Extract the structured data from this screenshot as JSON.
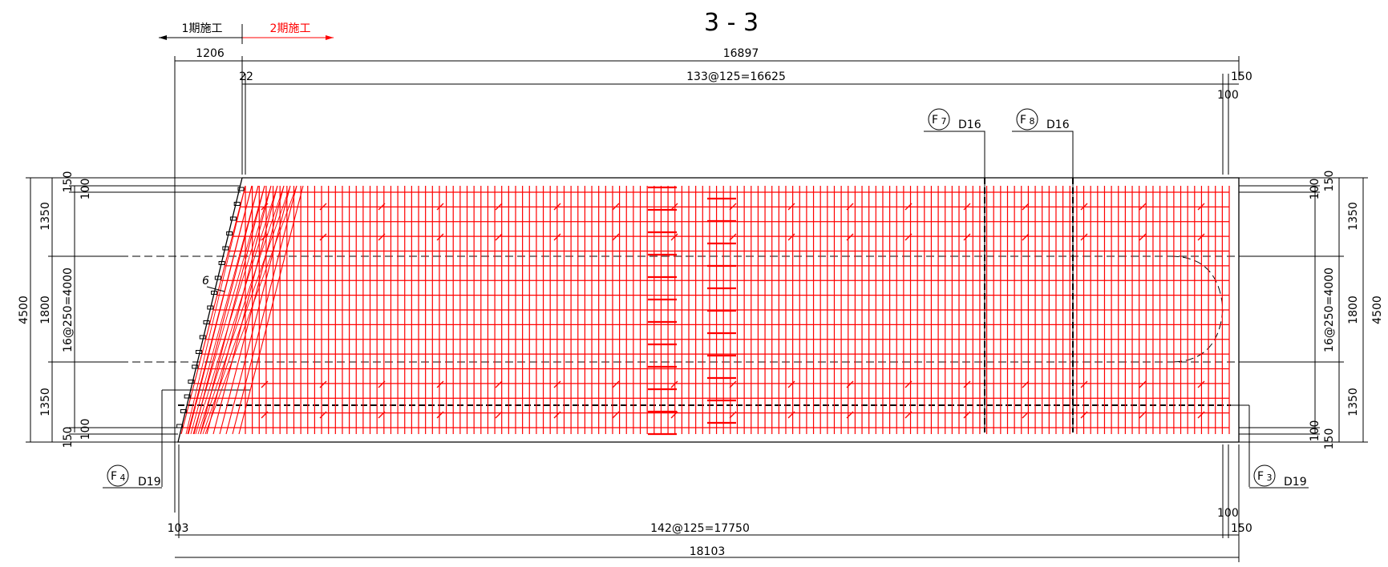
{
  "title": "3 - 3",
  "phase": {
    "phase1_label": "1期施工",
    "phase2_label": "2期施工",
    "phase2_color": "#ff0000"
  },
  "dimensions": {
    "top_left_1206": "1206",
    "top_total_16897": "16897",
    "top_22": "22",
    "top_spacing": "133@125=16625",
    "top_150": "150",
    "top_100": "100",
    "bottom_103": "103",
    "bottom_spacing": "142@125=17750",
    "bottom_100": "100",
    "bottom_150": "150",
    "bottom_total": "18103",
    "left_total": "4500",
    "left_1350_top": "1350",
    "left_1800": "1800",
    "left_1350_bottom": "1350",
    "left_spacing": "16@250=4000",
    "left_150_top": "150",
    "left_100_top": "100",
    "left_100_bottom": "100",
    "left_150_bottom": "150",
    "right_total": "4500",
    "right_1350_top": "1350",
    "right_1800": "1800",
    "right_1350_bottom": "1350",
    "right_spacing": "16@250=4000",
    "right_100_top": "100",
    "right_150_top": "150",
    "right_100_bottom": "100",
    "right_150_bottom": "150"
  },
  "callouts": {
    "f7": {
      "mark": "F",
      "sub": "7",
      "bar": "D16"
    },
    "f8": {
      "mark": "F",
      "sub": "8",
      "bar": "D16"
    },
    "f4": {
      "mark": "F",
      "sub": "4",
      "bar": "D19"
    },
    "f3": {
      "mark": "F",
      "sub": "3",
      "bar": "D19"
    }
  },
  "angle_mark": "6",
  "colors": {
    "rebar": "#ff0000",
    "lines": "#000000"
  }
}
